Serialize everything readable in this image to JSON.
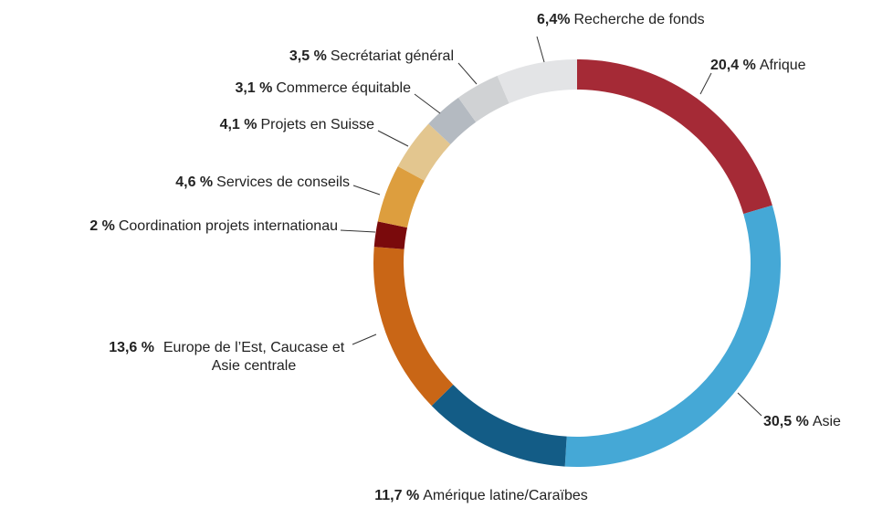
{
  "chart_data": {
    "type": "pie",
    "donut": true,
    "categories": [
      "Afrique",
      "Asie",
      "Amérique latine/Caraïbes",
      "Europe de l’Est, Caucase et Asie centrale",
      "Coordination projets internationau",
      "Services de conseils",
      "Projets en Suisse",
      "Commerce équitable",
      "Secrétariat général",
      "Recherche de fonds"
    ],
    "values": [
      20.4,
      30.5,
      11.7,
      13.6,
      2,
      4.6,
      4.1,
      3.1,
      3.5,
      6.4
    ],
    "value_labels": [
      "20,4 %",
      "30,5 %",
      "11,7 %",
      "13,6 %",
      "2 %",
      "4,6 %",
      "4,1 %",
      "3,1 %",
      "3,5 %",
      "6,4%"
    ],
    "colors": [
      "#a52a36",
      "#45a8d6",
      "#135c86",
      "#c96616",
      "#7a0a0c",
      "#dd9e3e",
      "#e3c68f",
      "#b4bac1",
      "#d0d2d4",
      "#e3e4e6"
    ]
  }
}
